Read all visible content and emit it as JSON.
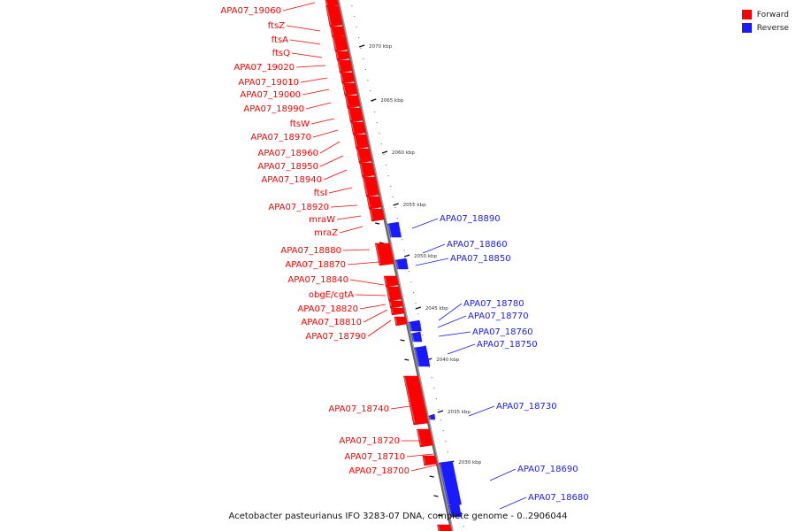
{
  "legend": {
    "forward": {
      "label": "Forward",
      "color": "#ff0000"
    },
    "reverse": {
      "label": "Reverse",
      "color": "#1a1aff"
    }
  },
  "caption": "Acetobacter pasteurianus IFO 3283-07 DNA, complete genome - 0..2906044",
  "ticks": [
    "2070 kbp",
    "2065 kbp",
    "2060 kbp",
    "2055 kbp",
    "2050 kbp",
    "2045 kbp",
    "2040 kbp",
    "2035 kbp",
    "2030 kbp"
  ],
  "forward_genes": [
    "APA07_19060",
    "ftsZ",
    "ftsA",
    "ftsQ",
    "APA07_19020",
    "APA07_19010",
    "APA07_19000",
    "APA07_18990",
    "ftsW",
    "APA07_18970",
    "APA07_18960",
    "APA07_18950",
    "APA07_18940",
    "ftsI",
    "APA07_18920",
    "mraW",
    "mraZ",
    "APA07_18880",
    "APA07_18870",
    "APA07_18840",
    "obgE/cgtA",
    "APA07_18820",
    "APA07_18810",
    "APA07_18790",
    "APA07_18740",
    "APA07_18720",
    "APA07_18710",
    "APA07_18700"
  ],
  "reverse_genes": [
    "APA07_18890",
    "APA07_18860",
    "APA07_18850",
    "APA07_18780",
    "APA07_18770",
    "APA07_18760",
    "APA07_18750",
    "APA07_18730",
    "APA07_18690",
    "APA07_18680"
  ]
}
